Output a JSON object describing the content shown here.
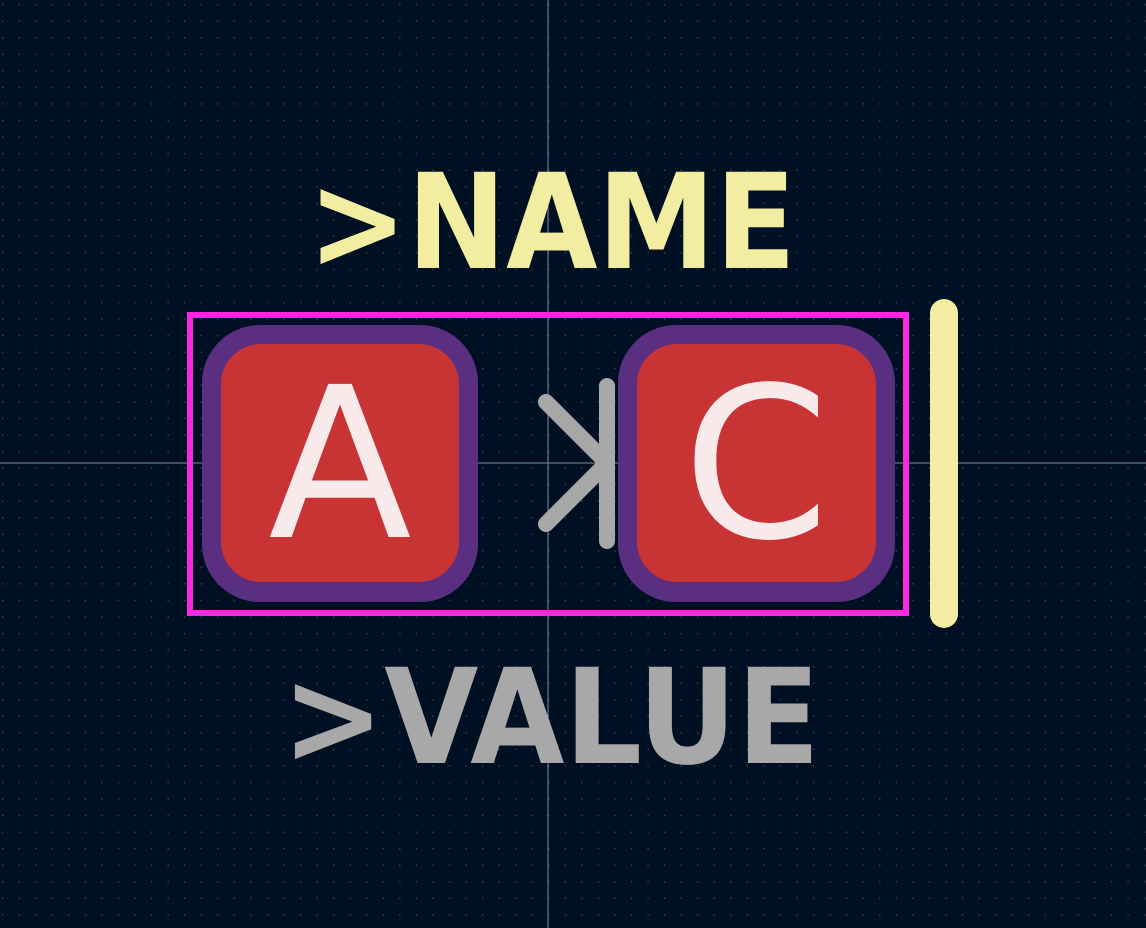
{
  "footprint": {
    "name_field": ">NAME",
    "value_field": ">VALUE"
  },
  "pads": [
    {
      "label": "A"
    },
    {
      "label": "C"
    }
  ],
  "colors": {
    "background": "#001023",
    "grid_dot": "#3a4e63",
    "axis": "#7d8ea1",
    "silkscreen": "#f2eda1",
    "fab": "#a8a8a8",
    "courtyard": "#ff26e2",
    "pad_copper": "#c83434",
    "pad_mask": "#5a2f82",
    "pad_label": "#f8eaea"
  },
  "icons": {
    "diode_symbol": "diode-cathode-icon"
  }
}
